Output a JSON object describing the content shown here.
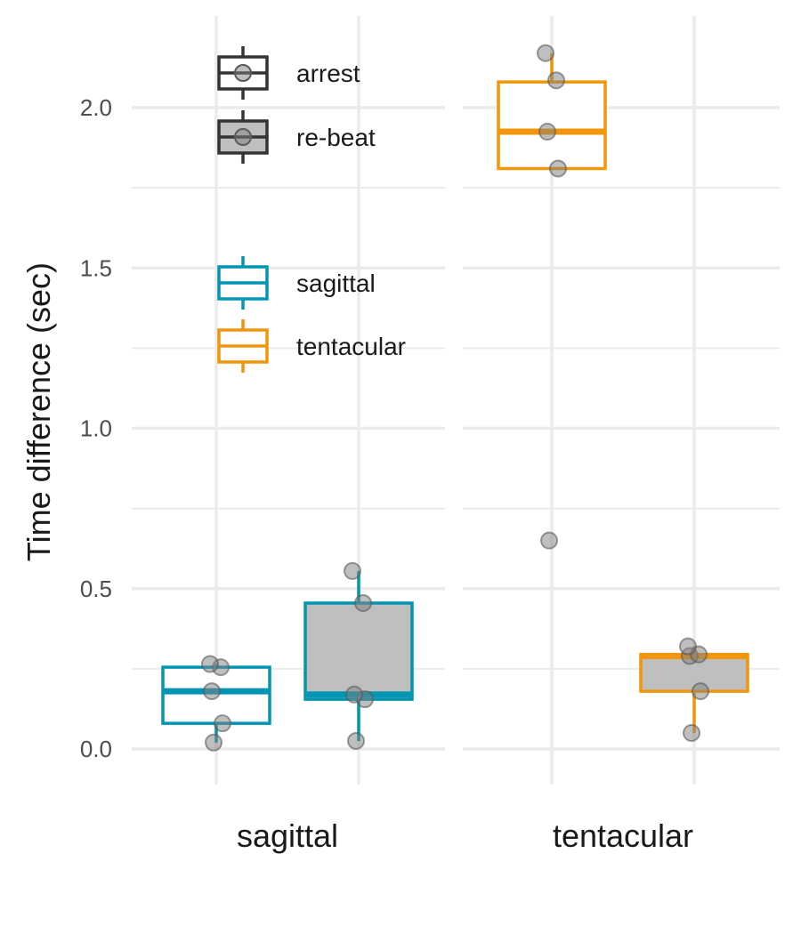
{
  "chart_data": {
    "type": "box",
    "ylabel": "Time difference (sec)",
    "ylim": [
      -0.08,
      2.25
    ],
    "yticks": [
      0.0,
      0.5,
      1.0,
      1.5,
      2.0
    ],
    "ytick_labels": [
      "0.0",
      "0.5",
      "1.0",
      "1.5",
      "2.0"
    ],
    "panels": [
      "sagittal",
      "tentacular"
    ],
    "fill_legend": [
      {
        "label": "arrest",
        "fill": "#ffffff"
      },
      {
        "label": "re-beat",
        "fill": "#bfbfbf"
      }
    ],
    "color_legend": [
      {
        "label": "sagittal",
        "color": "#0095b3"
      },
      {
        "label": "tentacular",
        "color": "#f0960a"
      }
    ],
    "groups": [
      {
        "panel": "sagittal",
        "type": "arrest",
        "color": "#0095b3",
        "fill": "#ffffff",
        "min": 0.02,
        "q1": 0.08,
        "median": 0.18,
        "q3": 0.255,
        "max": 0.265,
        "points": [
          0.02,
          0.08,
          0.18,
          0.255,
          0.265
        ]
      },
      {
        "panel": "sagittal",
        "type": "re-beat",
        "color": "#0095b3",
        "fill": "#bfbfbf",
        "min": 0.025,
        "q1": 0.155,
        "median": 0.17,
        "q3": 0.455,
        "max": 0.555,
        "points": [
          0.025,
          0.155,
          0.17,
          0.455,
          0.555
        ]
      },
      {
        "panel": "tentacular",
        "type": "arrest",
        "color": "#f0960a",
        "fill": "#ffffff",
        "min": 1.81,
        "q1": 1.81,
        "median": 1.925,
        "q3": 2.08,
        "max": 2.17,
        "points": [
          0.65,
          1.81,
          1.925,
          2.085,
          2.17
        ]
      },
      {
        "panel": "tentacular",
        "type": "re-beat",
        "color": "#f0960a",
        "fill": "#bfbfbf",
        "min": 0.05,
        "q1": 0.18,
        "median": 0.29,
        "q3": 0.295,
        "max": 0.32,
        "points": [
          0.05,
          0.18,
          0.29,
          0.295,
          0.32
        ]
      }
    ]
  }
}
